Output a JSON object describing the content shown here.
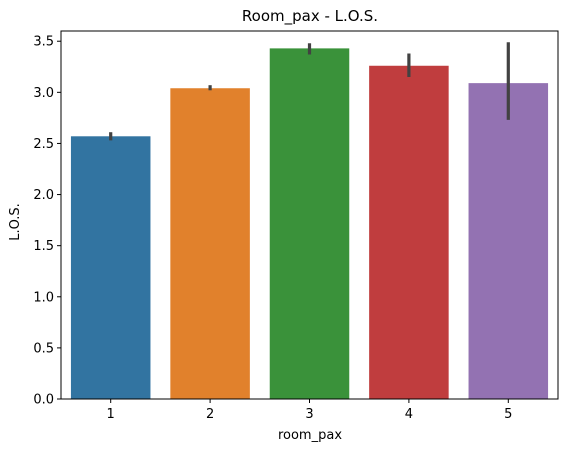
{
  "chart_data": {
    "type": "bar",
    "title": "Room_pax - L.O.S.",
    "xlabel": "room_pax",
    "ylabel": "L.O.S.",
    "categories": [
      "1",
      "2",
      "3",
      "4",
      "5"
    ],
    "values": [
      2.57,
      3.04,
      3.43,
      3.26,
      3.09
    ],
    "error_bars": [
      [
        2.53,
        2.61
      ],
      [
        3.02,
        3.07
      ],
      [
        3.37,
        3.48
      ],
      [
        3.15,
        3.38
      ],
      [
        2.73,
        3.49
      ]
    ],
    "colors": [
      "#3274a1",
      "#e1812c",
      "#3a923a",
      "#c03d3e",
      "#9372b2"
    ],
    "error_color": "#424242",
    "ylim": [
      0,
      3.6
    ],
    "yticks": [
      "0.0",
      "0.5",
      "1.0",
      "1.5",
      "2.0",
      "2.5",
      "3.0",
      "3.5"
    ],
    "grid": false,
    "legend": false
  }
}
